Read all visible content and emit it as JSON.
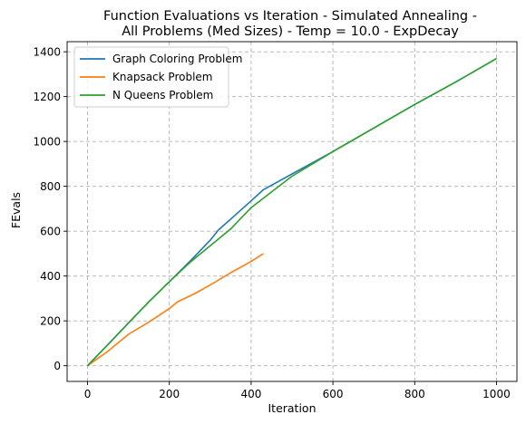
{
  "chart_data": {
    "type": "line",
    "title_lines": [
      "Function Evaluations vs Iteration - Simulated Annealing -",
      "All Problems (Med Sizes) - Temp = 10.0 - ExpDecay"
    ],
    "xlabel": "Iteration",
    "ylabel": "FEvals",
    "xlim": [
      -50,
      1050
    ],
    "ylim": [
      -70,
      1445
    ],
    "xticks": [
      0,
      200,
      400,
      600,
      800,
      1000
    ],
    "yticks": [
      0,
      200,
      400,
      600,
      800,
      1000,
      1200,
      1400
    ],
    "grid": true,
    "legend_position": "top-left",
    "series": [
      {
        "name": "Graph Coloring Problem",
        "color": "#1f77b4",
        "points": [
          [
            0,
            0
          ],
          [
            50,
            95
          ],
          [
            100,
            190
          ],
          [
            150,
            285
          ],
          [
            200,
            375
          ],
          [
            250,
            465
          ],
          [
            300,
            560
          ],
          [
            320,
            605
          ],
          [
            360,
            670
          ],
          [
            400,
            735
          ],
          [
            430,
            785
          ],
          [
            450,
            805
          ],
          [
            500,
            855
          ],
          [
            550,
            905
          ],
          [
            600,
            955
          ],
          [
            700,
            1060
          ],
          [
            800,
            1165
          ],
          [
            900,
            1265
          ],
          [
            1000,
            1370
          ]
        ]
      },
      {
        "name": "Knapsack Problem",
        "color": "#ff7f0e",
        "points": [
          [
            0,
            0
          ],
          [
            50,
            65
          ],
          [
            100,
            140
          ],
          [
            150,
            195
          ],
          [
            200,
            255
          ],
          [
            220,
            285
          ],
          [
            260,
            320
          ],
          [
            300,
            360
          ],
          [
            350,
            415
          ],
          [
            400,
            465
          ],
          [
            430,
            500
          ]
        ]
      },
      {
        "name": "N Queens Problem",
        "color": "#2ca02c",
        "points": [
          [
            0,
            0
          ],
          [
            50,
            95
          ],
          [
            100,
            190
          ],
          [
            150,
            285
          ],
          [
            200,
            375
          ],
          [
            250,
            460
          ],
          [
            300,
            535
          ],
          [
            350,
            610
          ],
          [
            400,
            705
          ],
          [
            450,
            775
          ],
          [
            500,
            845
          ],
          [
            550,
            900
          ],
          [
            600,
            955
          ],
          [
            700,
            1060
          ],
          [
            800,
            1165
          ],
          [
            900,
            1265
          ],
          [
            1000,
            1370
          ]
        ]
      }
    ]
  }
}
